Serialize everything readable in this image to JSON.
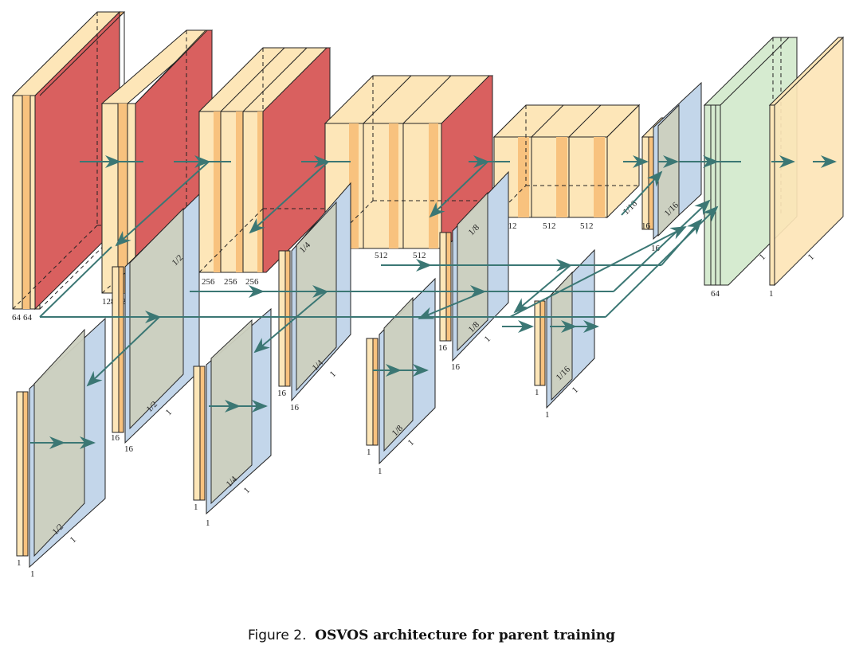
{
  "caption": {
    "prefix": "Figure 2.",
    "title": "OSVOS architecture for parent training"
  },
  "colors": {
    "cream": "#fde6b8",
    "orange": "#f8c27e",
    "red": "#d9605f",
    "blue": "#c3d6ea",
    "gray": "#cdd0bf",
    "green": "#d6ebd0",
    "arrow": "#3b7774"
  },
  "main_blocks": {
    "b1": {
      "channels_a": "64",
      "channels_b": "64"
    },
    "b2": {
      "channels_a": "128",
      "channels_b": "128"
    },
    "b3": {
      "channels_a": "256",
      "channels_b": "256",
      "channels_c": "256"
    },
    "b4": {
      "channels_a": "512",
      "channels_b": "512",
      "channels_c": "512"
    },
    "b5": {
      "channels_a": "512",
      "channels_b": "512",
      "channels_c": "512"
    },
    "side": {
      "ch16": "16",
      "ch16b": "16",
      "frac": "1/16"
    },
    "final": {
      "ch64": "64",
      "ch1": "1",
      "one_a": "1",
      "one_b": "1"
    }
  },
  "scale_labels": {
    "s1": "1",
    "s2": "1/2",
    "s4": "1/4",
    "s8": "1/8",
    "s16": "1/16",
    "one": "1"
  },
  "side_outputs": {
    "ch16": "16",
    "ch1": "1"
  }
}
